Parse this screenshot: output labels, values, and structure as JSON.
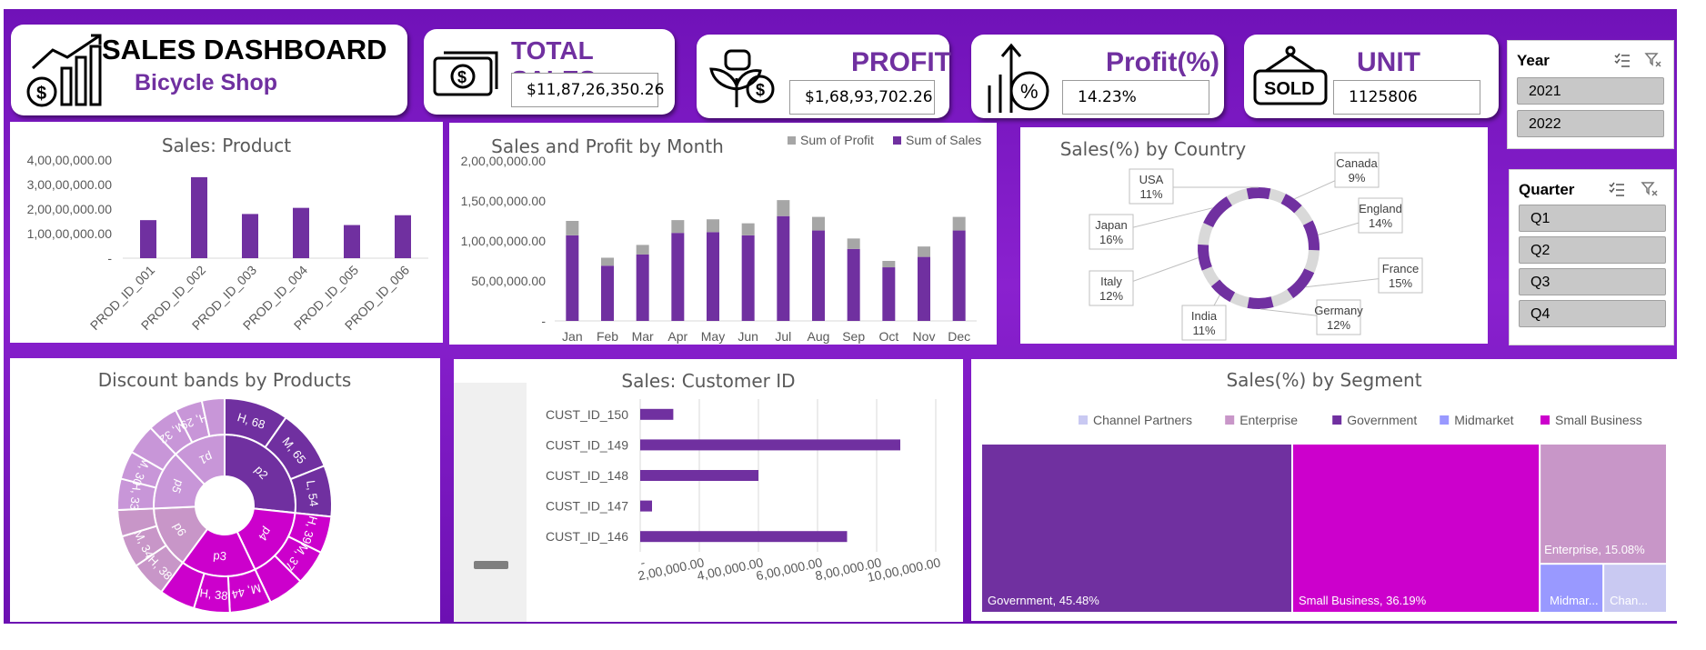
{
  "header": {
    "title": "SALES DASHBOARD",
    "subtitle": "Bicycle Shop"
  },
  "kpis": [
    {
      "label": "TOTAL SALES",
      "value": "$11,87,26,350.26",
      "icon": "cash-icon"
    },
    {
      "label": "PROFIT",
      "value": "$1,68,93,702.26",
      "icon": "money-plant-icon"
    },
    {
      "label": "Profit(%)",
      "value": "14.23%",
      "icon": "percent-growth-icon"
    },
    {
      "label": "UNIT SOLD",
      "value": "1125806",
      "icon": "sold-sign-icon"
    }
  ],
  "slicers": {
    "year": {
      "title": "Year",
      "items": [
        "2021",
        "2022"
      ]
    },
    "quarter": {
      "title": "Quarter",
      "items": [
        "Q1",
        "Q2",
        "Q3",
        "Q4"
      ]
    }
  },
  "colors": {
    "purple": "#7030a0",
    "grey": "#a6a6a6",
    "magenta": "#cc00cc",
    "light_grey": "#d9d9d9"
  },
  "chart_data": [
    {
      "type": "bar",
      "title": "Sales: Product",
      "categories": [
        "PROD_ID_001",
        "PROD_ID_002",
        "PROD_ID_003",
        "PROD_ID_004",
        "PROD_ID_005",
        "PROD_ID_006"
      ],
      "values": [
        15500000,
        33000000,
        18000000,
        20500000,
        13500000,
        17500000
      ],
      "ylim": [
        0,
        40000000
      ],
      "yticks": [
        "-",
        "1,00,00,000.00",
        "2,00,00,000.00",
        "3,00,00,000.00",
        "4,00,00,000.00"
      ],
      "grid": false
    },
    {
      "type": "bar",
      "title": "Sales and Profit by Month",
      "categories": [
        "Jan",
        "Feb",
        "Mar",
        "Apr",
        "May",
        "Jun",
        "Jul",
        "Aug",
        "Sep",
        "Oct",
        "Nov",
        "Dec"
      ],
      "series": [
        {
          "name": "Sum of Sales",
          "values": [
            10700000,
            6900000,
            8300000,
            11000000,
            11100000,
            10700000,
            13100000,
            11300000,
            9000000,
            6700000,
            8000000,
            11300000
          ]
        },
        {
          "name": "Sum of Profit",
          "values": [
            1800000,
            1000000,
            1200000,
            1600000,
            1600000,
            1500000,
            2000000,
            1700000,
            1300000,
            800000,
            1300000,
            1700000
          ]
        }
      ],
      "stacked": true,
      "ylim": [
        0,
        20000000
      ],
      "yticks": [
        "-",
        "50,00,000.00",
        "1,00,00,000.00",
        "1,50,00,000.00",
        "2,00,00,000.00"
      ],
      "legend": "top-right",
      "grid": false
    },
    {
      "type": "pie",
      "title": "Sales(%) by Country",
      "donut": true,
      "categories": [
        "Canada",
        "England",
        "France",
        "Germany",
        "India",
        "Italy",
        "Japan",
        "USA"
      ],
      "values": [
        9,
        14,
        15,
        12,
        11,
        12,
        16,
        11
      ],
      "labels": [
        "9%",
        "14%",
        "15%",
        "12%",
        "11%",
        "12%",
        "16%",
        "11%"
      ]
    },
    {
      "type": "pie",
      "title": "Discount bands by Products",
      "sunburst": true,
      "inner": [
        {
          "label": "p2",
          "value": 187,
          "color": "#7030a0"
        },
        {
          "label": "p4",
          "value": 114,
          "color": "#cc00cc"
        },
        {
          "label": "p3",
          "value": 120,
          "color": "#cc00cc"
        },
        {
          "label": "p6",
          "value": 100,
          "color": "#c896c8"
        },
        {
          "label": "p5",
          "value": 95,
          "color": "#c896d8"
        },
        {
          "label": "p1",
          "value": 85,
          "color": "#c896d8"
        }
      ],
      "outer": [
        {
          "label": "H, 68",
          "value": 68,
          "color": "#7030a0"
        },
        {
          "label": "M, 65",
          "value": 65,
          "color": "#7030a0"
        },
        {
          "label": "L, 54",
          "value": 54,
          "color": "#7030a0"
        },
        {
          "label": "H, 39",
          "value": 39,
          "color": "#cc00cc"
        },
        {
          "label": "M, 37",
          "value": 37,
          "color": "#cc00cc"
        },
        {
          "label": "",
          "value": 38,
          "color": "#cc00cc"
        },
        {
          "label": "M, 44",
          "value": 44,
          "color": "#cc00cc"
        },
        {
          "label": "H, 38",
          "value": 38,
          "color": "#cc00cc"
        },
        {
          "label": "",
          "value": 38,
          "color": "#cc00cc"
        },
        {
          "label": "H, 38",
          "value": 38,
          "color": "#c896c8"
        },
        {
          "label": "M, 34",
          "value": 34,
          "color": "#c896c8"
        },
        {
          "label": "",
          "value": 28,
          "color": "#c896c8"
        },
        {
          "label": "H, 33",
          "value": 33,
          "color": "#c896d8"
        },
        {
          "label": "M, 30",
          "value": 30,
          "color": "#c896d8"
        },
        {
          "label": "",
          "value": 32,
          "color": "#c896d8"
        },
        {
          "label": "M, 32",
          "value": 32,
          "color": "#c896d8"
        },
        {
          "label": "H, 29",
          "value": 29,
          "color": "#c896d8"
        },
        {
          "label": "",
          "value": 24,
          "color": "#c896d8"
        }
      ]
    },
    {
      "type": "bar",
      "orientation": "horizontal",
      "title": "Sales: Customer ID",
      "categories": [
        "CUST_ID_150",
        "CUST_ID_149",
        "CUST_ID_148",
        "CUST_ID_147",
        "CUST_ID_146"
      ],
      "values": [
        280000,
        2200000,
        1000000,
        100000,
        1750000
      ],
      "xlim": [
        0,
        2500000
      ],
      "xticks": [
        "-",
        "2,00,000.00",
        "4,00,000.00",
        "6,00,000.00",
        "8,00,000.00",
        "10,00,000.00"
      ],
      "grid": true
    },
    {
      "type": "treemap",
      "title": "Sales(%) by Segment",
      "categories": [
        "Channel Partners",
        "Enterprise",
        "Government",
        "Midmarket",
        "Small Business"
      ],
      "colors": [
        "#c9c9f2",
        "#c896c8",
        "#7030a0",
        "#9999ff",
        "#cc00cc"
      ],
      "values": [
        1.6,
        15.08,
        45.48,
        1.65,
        36.19
      ],
      "labels": [
        "Chan...",
        "Enterprise, 15.08%",
        "Government, 45.48%",
        "Midmar...",
        "Small Business, 36.19%"
      ],
      "legend": "top"
    }
  ]
}
